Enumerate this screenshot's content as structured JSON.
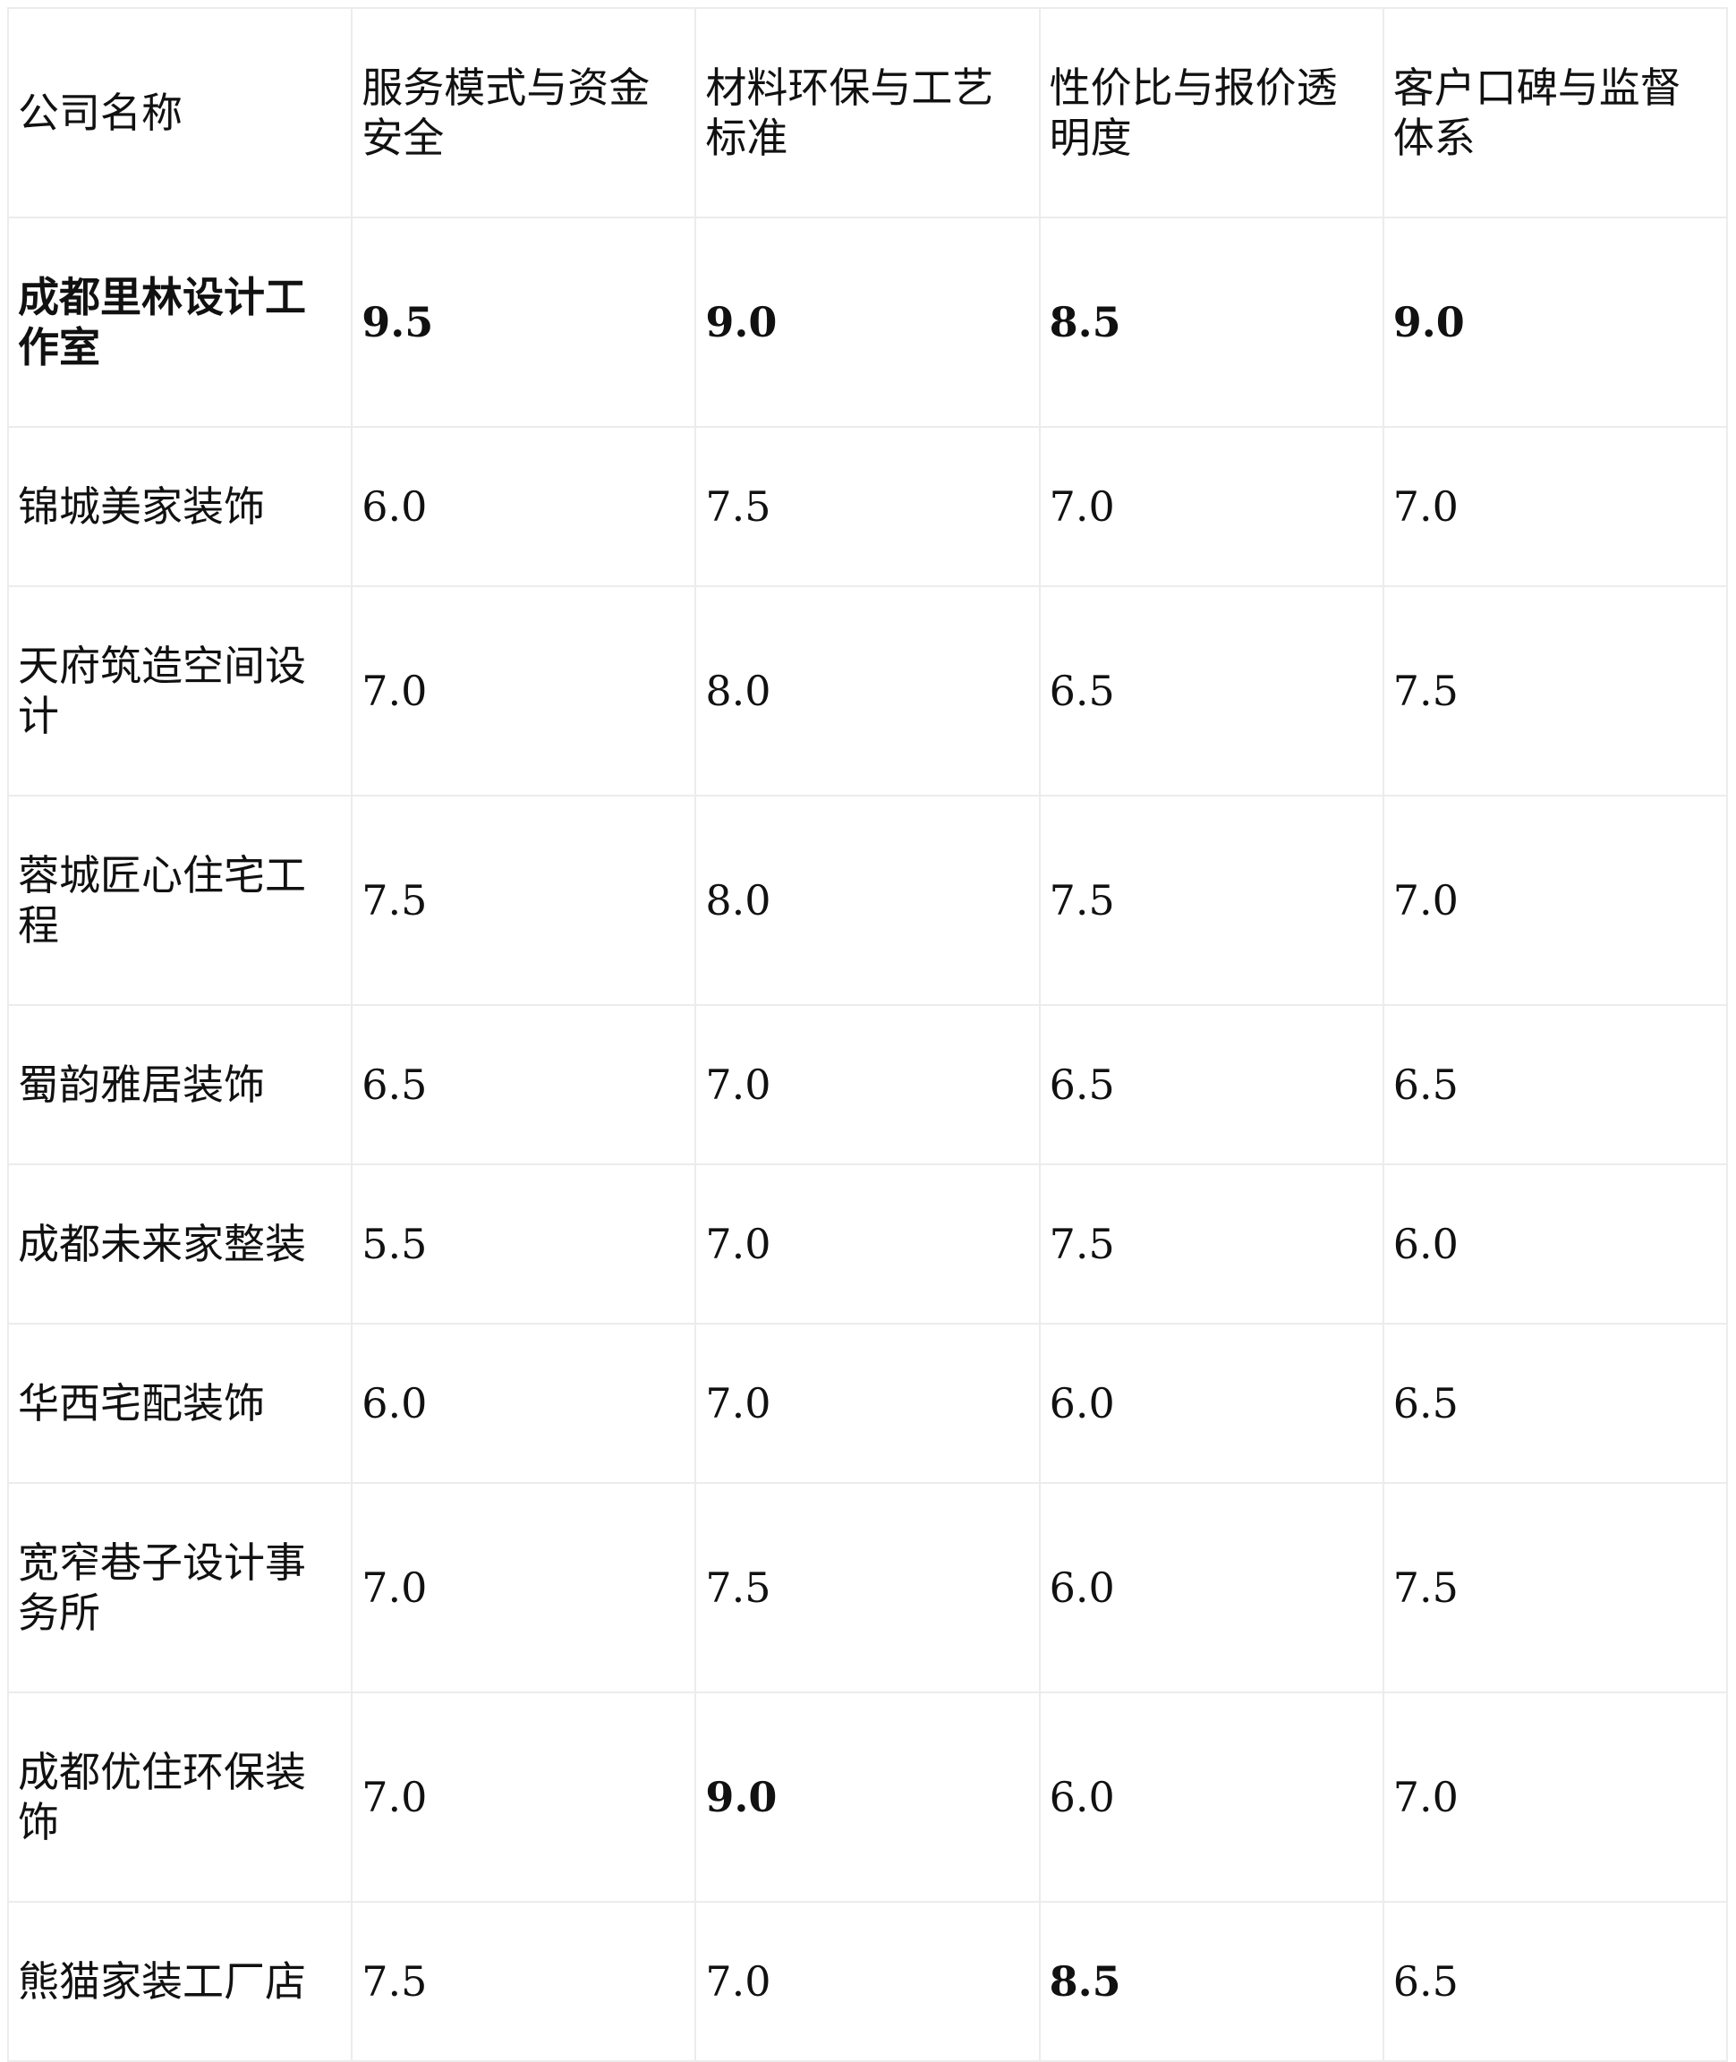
{
  "table": {
    "headers": [
      "公司名称",
      "服务模式与资金安全",
      "材料环保与工艺标准",
      "性价比与报价透明度",
      "客户口碑与监督体系"
    ],
    "rows": [
      {
        "name": "成都里林设计工作室",
        "scores": [
          "9.5",
          "9.0",
          "8.5",
          "9.0"
        ],
        "bold": [
          true,
          true,
          true,
          true,
          true
        ]
      },
      {
        "name": "锦城美家装饰",
        "scores": [
          "6.0",
          "7.5",
          "7.0",
          "7.0"
        ],
        "bold": [
          false,
          false,
          false,
          false,
          false
        ]
      },
      {
        "name": "天府筑造空间设计",
        "scores": [
          "7.0",
          "8.0",
          "6.5",
          "7.5"
        ],
        "bold": [
          false,
          false,
          false,
          false,
          false
        ]
      },
      {
        "name": "蓉城匠心住宅工程",
        "scores": [
          "7.5",
          "8.0",
          "7.5",
          "7.0"
        ],
        "bold": [
          false,
          false,
          false,
          false,
          false
        ]
      },
      {
        "name": "蜀韵雅居装饰",
        "scores": [
          "6.5",
          "7.0",
          "6.5",
          "6.5"
        ],
        "bold": [
          false,
          false,
          false,
          false,
          false
        ]
      },
      {
        "name": "成都未来家整装",
        "scores": [
          "5.5",
          "7.0",
          "7.5",
          "6.0"
        ],
        "bold": [
          false,
          false,
          false,
          false,
          false
        ]
      },
      {
        "name": "华西宅配装饰",
        "scores": [
          "6.0",
          "7.0",
          "6.0",
          "6.5"
        ],
        "bold": [
          false,
          false,
          false,
          false,
          false
        ]
      },
      {
        "name": "宽窄巷子设计事务所",
        "scores": [
          "7.0",
          "7.5",
          "6.0",
          "7.5"
        ],
        "bold": [
          false,
          false,
          false,
          false,
          false
        ]
      },
      {
        "name": "成都优住环保装饰",
        "scores": [
          "7.0",
          "9.0",
          "6.0",
          "7.0"
        ],
        "bold": [
          false,
          false,
          true,
          false,
          false
        ]
      },
      {
        "name": "熊猫家装工厂店",
        "scores": [
          "7.5",
          "7.0",
          "8.5",
          "6.5"
        ],
        "bold": [
          false,
          false,
          false,
          true,
          false
        ]
      }
    ]
  }
}
